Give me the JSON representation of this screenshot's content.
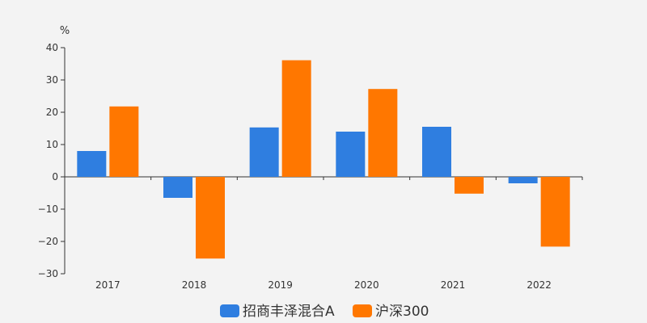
{
  "chart_data": {
    "type": "bar",
    "y_unit": "%",
    "categories": [
      "2017",
      "2018",
      "2019",
      "2020",
      "2021",
      "2022"
    ],
    "series": [
      {
        "name": "招商丰泽混合A",
        "color": "#2f7ee0",
        "values": [
          8.0,
          -6.5,
          15.3,
          14.0,
          15.5,
          -2.0
        ]
      },
      {
        "name": "沪深300",
        "color": "#ff7700",
        "values": [
          21.8,
          -25.3,
          36.1,
          27.2,
          -5.2,
          -21.6
        ]
      }
    ],
    "yticks": [
      "40",
      "30",
      "20",
      "10",
      "0",
      "−10",
      "−20",
      "−30"
    ],
    "ylim": [
      -30,
      40
    ],
    "legend_position": "bottom",
    "grid": false
  }
}
